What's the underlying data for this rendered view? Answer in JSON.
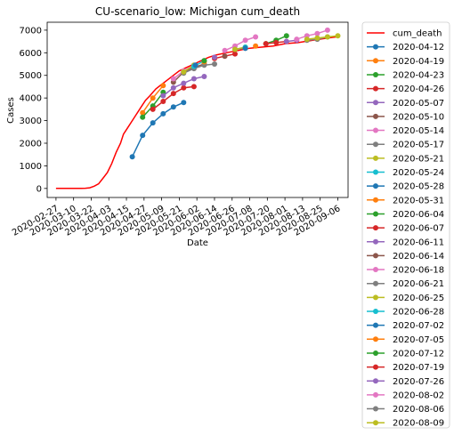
{
  "chart_data": {
    "type": "line",
    "title": "CU-scenario_low: Michigan cum_death",
    "xlabel": "Date",
    "ylabel": "Cases",
    "ylim": [
      -400,
      7350
    ],
    "xlim": [
      "2020-02-21",
      "2020-09-13"
    ],
    "grid": false,
    "legend_position": "outside-right",
    "x_ticks": [
      "2020-02-27",
      "2020-03-10",
      "2020-03-22",
      "2020-04-03",
      "2020-04-15",
      "2020-04-27",
      "2020-05-09",
      "2020-05-21",
      "2020-06-02",
      "2020-06-14",
      "2020-06-26",
      "2020-07-08",
      "2020-07-20",
      "2020-08-01",
      "2020-08-13",
      "2020-08-25",
      "2020-09-06"
    ],
    "y_ticks": [
      0,
      1000,
      2000,
      3000,
      4000,
      5000,
      6000,
      7000
    ],
    "observed": {
      "name": "cum_death",
      "color": "#ff0000",
      "points": [
        [
          "2020-02-27",
          0
        ],
        [
          "2020-03-05",
          0
        ],
        [
          "2020-03-10",
          0
        ],
        [
          "2020-03-15",
          0
        ],
        [
          "2020-03-18",
          10
        ],
        [
          "2020-03-21",
          30
        ],
        [
          "2020-03-24",
          100
        ],
        [
          "2020-03-27",
          200
        ],
        [
          "2020-03-30",
          450
        ],
        [
          "2020-04-02",
          700
        ],
        [
          "2020-04-05",
          1100
        ],
        [
          "2020-04-08",
          1600
        ],
        [
          "2020-04-11",
          2000
        ],
        [
          "2020-04-13",
          2400
        ],
        [
          "2020-04-16",
          2700
        ],
        [
          "2020-04-19",
          3000
        ],
        [
          "2020-04-22",
          3300
        ],
        [
          "2020-04-25",
          3600
        ],
        [
          "2020-04-28",
          3900
        ],
        [
          "2020-05-01",
          4100
        ],
        [
          "2020-05-05",
          4400
        ],
        [
          "2020-05-09",
          4600
        ],
        [
          "2020-05-13",
          4800
        ],
        [
          "2020-05-17",
          5000
        ],
        [
          "2020-05-21",
          5200
        ],
        [
          "2020-05-26",
          5350
        ],
        [
          "2020-05-31",
          5500
        ],
        [
          "2020-06-05",
          5650
        ],
        [
          "2020-06-10",
          5800
        ],
        [
          "2020-06-15",
          5900
        ],
        [
          "2020-06-22",
          6000
        ],
        [
          "2020-06-30",
          6100
        ],
        [
          "2020-07-08",
          6200
        ],
        [
          "2020-07-16",
          6250
        ],
        [
          "2020-07-24",
          6300
        ],
        [
          "2020-08-01",
          6400
        ],
        [
          "2020-08-10",
          6450
        ],
        [
          "2020-08-20",
          6550
        ],
        [
          "2020-08-30",
          6650
        ],
        [
          "2020-09-05",
          6700
        ]
      ]
    },
    "forecast_series": [
      {
        "name": "2020-04-12",
        "color": "#1f77b4",
        "start": "2020-04-19",
        "values": [
          1400,
          2350,
          2900,
          3300,
          3600,
          3800
        ]
      },
      {
        "name": "2020-04-19",
        "color": "#ff7f0e",
        "start": "2020-04-26",
        "values": [
          3350,
          4000,
          4550
        ]
      },
      {
        "name": "2020-04-23",
        "color": "#2ca02c",
        "start": "2020-04-26",
        "values": [
          3150,
          3650,
          4250
        ]
      },
      {
        "name": "2020-04-26",
        "color": "#d62728",
        "start": "2020-05-03",
        "values": [
          3500,
          3850,
          4200,
          4450,
          4500
        ]
      },
      {
        "name": "2020-05-07",
        "color": "#9467bd",
        "start": "2020-05-10",
        "values": [
          4100,
          4450,
          4650,
          4850,
          4950
        ]
      },
      {
        "name": "2020-05-10",
        "color": "#8c564b",
        "start": "2020-05-17",
        "values": [
          4700,
          5150,
          5350,
          5500
        ]
      },
      {
        "name": "2020-05-14",
        "color": "#e377c2",
        "start": "2020-05-17",
        "values": [
          4850,
          5200,
          5450
        ]
      },
      {
        "name": "2020-05-17",
        "color": "#7f7f7f",
        "start": "2020-05-24",
        "values": [
          5100,
          5300,
          5450,
          5500
        ]
      },
      {
        "name": "2020-05-21",
        "color": "#bcbd22",
        "start": "2020-05-24",
        "values": [
          5150,
          5450
        ]
      },
      {
        "name": "2020-05-24",
        "color": "#17becf",
        "start": "2020-05-31",
        "values": [
          5400,
          5650
        ]
      },
      {
        "name": "2020-05-28",
        "color": "#1f77b4",
        "start": "2020-06-01",
        "values": [
          5450
        ]
      },
      {
        "name": "2020-05-31",
        "color": "#ff7f0e",
        "start": "2020-06-07",
        "values": [
          5600
        ]
      },
      {
        "name": "2020-06-04",
        "color": "#2ca02c",
        "start": "2020-06-07",
        "values": [
          5650
        ]
      },
      {
        "name": "2020-06-07",
        "color": "#d62728",
        "start": "2020-06-14",
        "values": [
          5750,
          5850,
          5950
        ]
      },
      {
        "name": "2020-06-11",
        "color": "#9467bd",
        "start": "2020-06-14",
        "values": [
          5800
        ]
      },
      {
        "name": "2020-06-14",
        "color": "#8c564b",
        "start": "2020-06-21",
        "values": [
          5850
        ]
      },
      {
        "name": "2020-06-18",
        "color": "#e377c2",
        "start": "2020-06-21",
        "values": [
          6100,
          6300,
          6550,
          6700
        ]
      },
      {
        "name": "2020-06-21",
        "color": "#7f7f7f",
        "start": "2020-06-28",
        "values": [
          6150,
          6200
        ]
      },
      {
        "name": "2020-06-25",
        "color": "#bcbd22",
        "start": "2020-06-28",
        "values": [
          6150,
          6250
        ]
      },
      {
        "name": "2020-06-28",
        "color": "#17becf",
        "start": "2020-07-05",
        "values": [
          6250
        ]
      },
      {
        "name": "2020-07-02",
        "color": "#1f77b4",
        "start": "2020-07-05",
        "values": [
          6200
        ]
      },
      {
        "name": "2020-07-05",
        "color": "#ff7f0e",
        "start": "2020-07-12",
        "values": [
          6300
        ]
      },
      {
        "name": "2020-07-12",
        "color": "#2ca02c",
        "start": "2020-07-19",
        "values": [
          6400,
          6550,
          6750
        ]
      },
      {
        "name": "2020-07-19",
        "color": "#d62728",
        "start": "2020-07-19",
        "values": [
          6400,
          6450,
          6500
        ]
      },
      {
        "name": "2020-07-26",
        "color": "#9467bd",
        "start": "2020-08-02",
        "values": [
          6500,
          6550
        ]
      },
      {
        "name": "2020-08-02",
        "color": "#e377c2",
        "start": "2020-08-09",
        "values": [
          6600,
          6750,
          6850,
          7000
        ]
      },
      {
        "name": "2020-08-06",
        "color": "#7f7f7f",
        "start": "2020-08-16",
        "values": [
          6550,
          6600,
          6700
        ]
      },
      {
        "name": "2020-08-09",
        "color": "#bcbd22",
        "start": "2020-08-16",
        "values": [
          6600,
          6650,
          6700,
          6750
        ]
      }
    ]
  }
}
